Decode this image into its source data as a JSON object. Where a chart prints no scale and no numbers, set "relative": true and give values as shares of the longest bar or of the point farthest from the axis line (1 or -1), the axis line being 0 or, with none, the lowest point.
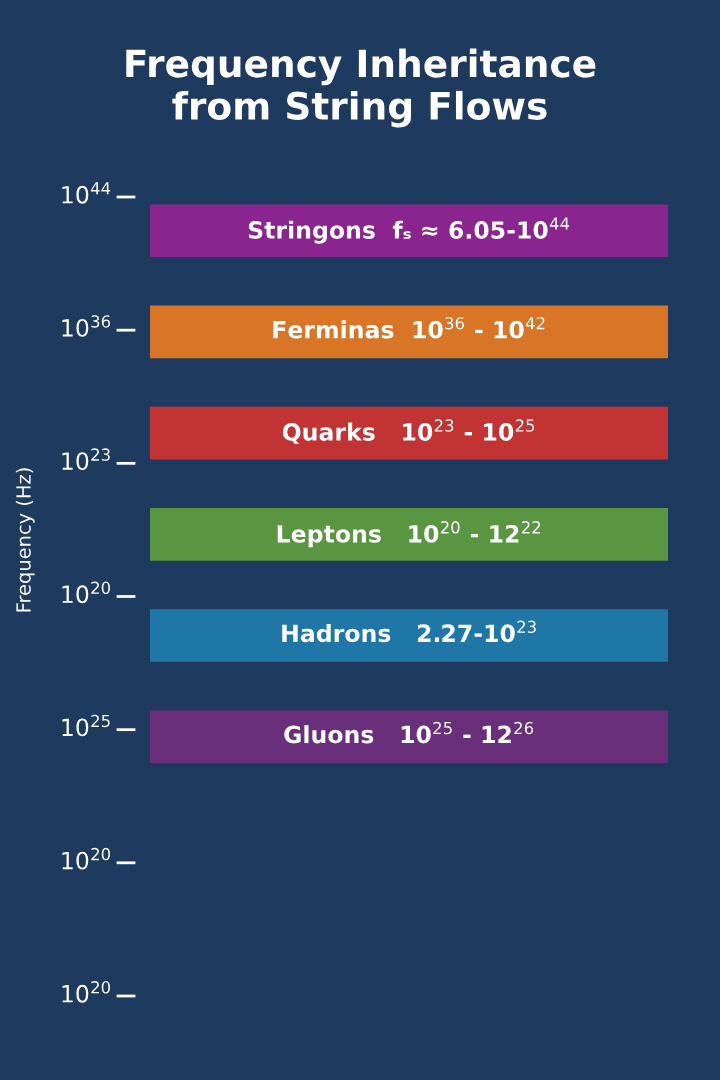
{
  "chart_data": {
    "type": "bar",
    "orientation": "horizontal",
    "relative": true,
    "title": "Frequency Inheritance\nfrom String Flows",
    "categories": [
      "Stringons  fₛ ≈ 6.05-10$^{44}$",
      "Ferminas  10$^{36}$ - 10$^{42}$",
      "Quarks   10$^{23}$ - 10$^{25}$",
      "Leptons   10$^{20}$ - 12$^{22}$",
      "Hadrons   2.27-10$^{23}$",
      "Gluons   10$^{25}$ - 12$^{26}$"
    ],
    "values": [
      1,
      1,
      1,
      1,
      1,
      1
    ],
    "colors": [
      "#8a2590",
      "#d97526",
      "#c23434",
      "#5a9641",
      "#1f77a8",
      "#6a2f7a"
    ],
    "annotations": [
      "Frequency (Hz)",
      "10$^{44}$",
      "10$^{36}$",
      "10$^{23}$",
      "10$^{20}$",
      "10$^{25}$",
      "10$^{20}$",
      "10$^{20}$"
    ],
    "legend": false
  }
}
